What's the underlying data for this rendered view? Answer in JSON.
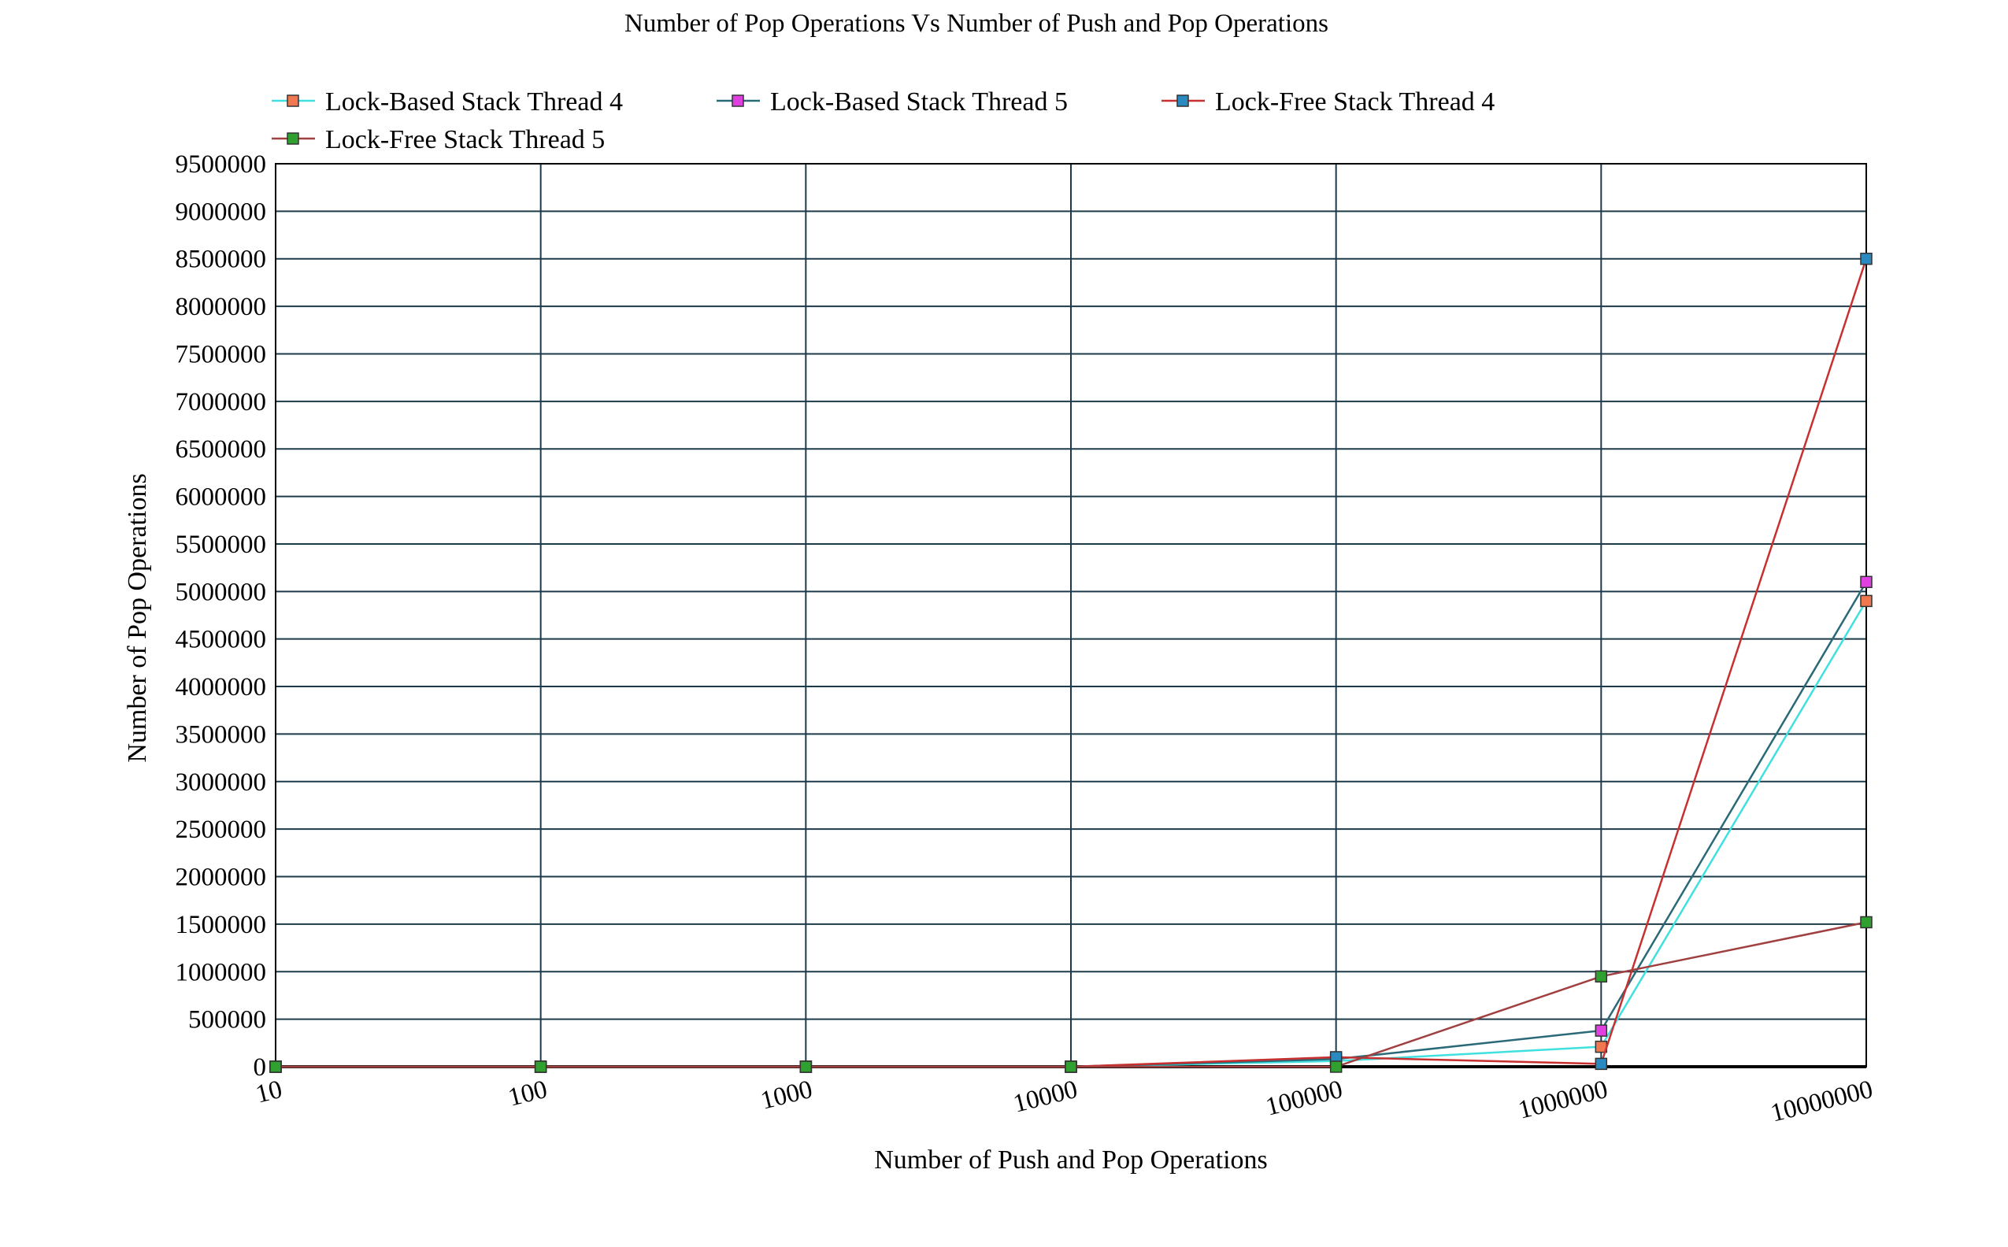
{
  "chart_data": {
    "type": "line",
    "title": "Number of Pop Operations  Vs Number of Push and Pop Operations",
    "xlabel": "Number of Push and Pop Operations",
    "ylabel": "Number of Pop Operations",
    "x_scale": "log",
    "categories": [
      "10",
      "100",
      "1000",
      "10000",
      "100000",
      "1000000",
      "10000000"
    ],
    "x": [
      10,
      100,
      1000,
      10000,
      100000,
      1000000,
      10000000
    ],
    "ylim": [
      0,
      9500000
    ],
    "y_ticks": [
      0,
      500000,
      1000000,
      1500000,
      2000000,
      2500000,
      3000000,
      3500000,
      4000000,
      4500000,
      5000000,
      5500000,
      6000000,
      6500000,
      7000000,
      7500000,
      8000000,
      8500000,
      9000000,
      9500000
    ],
    "grid": true,
    "legend_position": "top",
    "series": [
      {
        "name": "Lock-Based Stack Thread 4",
        "line_color": "#40e0e0",
        "marker_color": "#f07850",
        "values": [
          0,
          0,
          0,
          0,
          60000,
          210000,
          4900000
        ]
      },
      {
        "name": "Lock-Based Stack Thread 5",
        "line_color": "#2a6a78",
        "marker_color": "#e040e0",
        "values": [
          0,
          0,
          0,
          0,
          80000,
          380000,
          5100000
        ]
      },
      {
        "name": "Lock-Free Stack Thread 4",
        "line_color": "#c83030",
        "marker_color": "#2a8ac0",
        "values": [
          0,
          0,
          0,
          0,
          100000,
          30000,
          8500000
        ]
      },
      {
        "name": "Lock-Free Stack Thread 5",
        "line_color": "#a04040",
        "marker_color": "#30a030",
        "values": [
          0,
          0,
          0,
          0,
          0,
          950000,
          1520000
        ]
      }
    ]
  }
}
